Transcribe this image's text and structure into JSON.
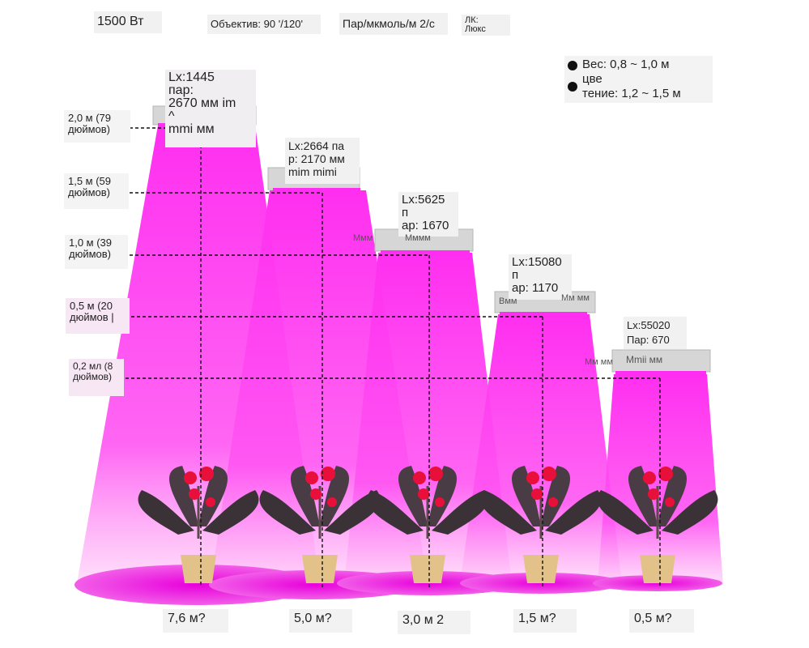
{
  "header": {
    "power": "1500 Вт",
    "lens": "Объектив: 90 '/120'",
    "par_unit": "Пар/мкмоль/м 2/с",
    "lux_label": "ЛК:\nЛюкс"
  },
  "legend": {
    "weight": "Вес: 0,8 ~ 1,0 м",
    "flowering": "цве\nтение: 1,2 ~ 1,5 м"
  },
  "heights": [
    {
      "label": "2,0 м (79\nдюймов)"
    },
    {
      "label": "1,5 м (59\nдюймов)"
    },
    {
      "label": "1,0 м (39\nдюймов)"
    },
    {
      "label": "0,5 м (20\nдюймов |"
    },
    {
      "label": "0,2 мл (8\nдюймов)"
    }
  ],
  "lamps": [
    {
      "text": "Lx:1445\nпар:\n2670 мм im\n^\nmmi мм"
    },
    {
      "text": "Lx:2664 па\nр: 2170 мм\nmim mimi"
    },
    {
      "text": "Lx:5625\nп\nар: 1670",
      "side_left": "Mмм",
      "side_mid": "Mммм"
    },
    {
      "text": "Lx:15080\nп\nар: 1170",
      "side_left": "Bмм",
      "side_right": "Мм мм"
    },
    {
      "text": "Lx:55020\nПар: 670",
      "lamp_label": "Mmii мм",
      "side_left": "Мм мм"
    }
  ],
  "coverage": [
    {
      "label": "7,6 м?"
    },
    {
      "label": "5,0 м?"
    },
    {
      "label": "3,0 м 2"
    },
    {
      "label": "1,5 м?"
    },
    {
      "label": "0,5 м?"
    }
  ],
  "colors": {
    "beam": "#ff33f0",
    "beam_light": "#ffc4f7",
    "spot": "#e600d8",
    "lamp": "#d4d4d4",
    "leaf": "#3b3238",
    "flower": "#e8103a",
    "pot": "#e3c28a"
  }
}
